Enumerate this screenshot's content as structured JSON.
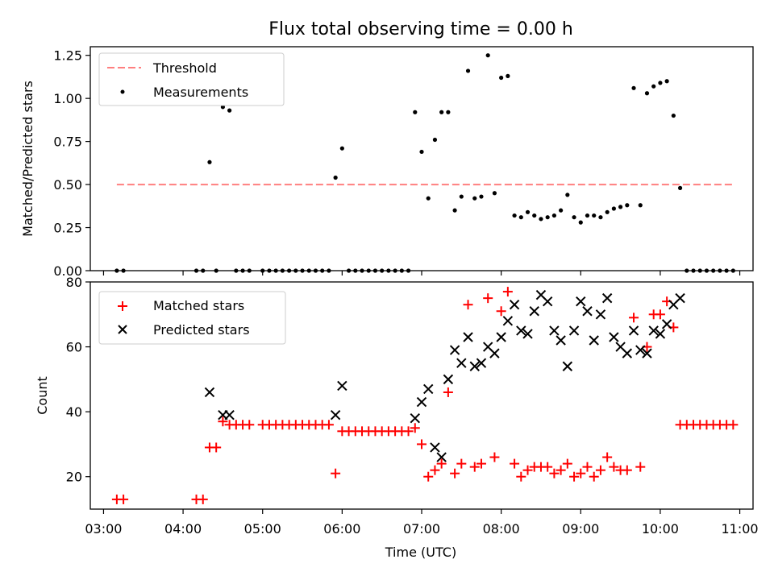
{
  "chart_data": [
    {
      "type": "scatter",
      "title": "Flux total observing time = 0.00 h",
      "xlabel": "",
      "ylabel": "Matched/Predicted stars",
      "xlim": [
        "02:50",
        "11:10"
      ],
      "ylim": [
        0,
        1.3
      ],
      "x_ticks": [
        "03:00",
        "04:00",
        "05:00",
        "06:00",
        "07:00",
        "08:00",
        "09:00",
        "10:00",
        "11:00"
      ],
      "y_ticks": [
        0.0,
        0.25,
        0.5,
        0.75,
        1.0,
        1.25
      ],
      "y_tick_labels": [
        "0.00",
        "0.25",
        "0.50",
        "0.75",
        "1.00",
        "1.25"
      ],
      "legend_position": "top-left",
      "grid": false,
      "threshold": {
        "name": "Threshold",
        "value": 0.5,
        "x_start": "03:10",
        "x_end": "10:55",
        "color": "#ff7f7f"
      },
      "series": [
        {
          "name": "Measurements",
          "color": "#000000",
          "points": [
            [
              "03:10",
              0.0
            ],
            [
              "03:15",
              0.0
            ],
            [
              "04:10",
              0.0
            ],
            [
              "04:15",
              0.0
            ],
            [
              "04:20",
              0.63
            ],
            [
              "04:25",
              0.0
            ],
            [
              "04:30",
              0.95
            ],
            [
              "04:35",
              0.93
            ],
            [
              "04:40",
              0.0
            ],
            [
              "04:45",
              0.0
            ],
            [
              "04:50",
              0.0
            ],
            [
              "05:00",
              0.0
            ],
            [
              "05:05",
              0.0
            ],
            [
              "05:10",
              0.0
            ],
            [
              "05:15",
              0.0
            ],
            [
              "05:20",
              0.0
            ],
            [
              "05:25",
              0.0
            ],
            [
              "05:30",
              0.0
            ],
            [
              "05:35",
              0.0
            ],
            [
              "05:40",
              0.0
            ],
            [
              "05:45",
              0.0
            ],
            [
              "05:50",
              0.0
            ],
            [
              "05:55",
              0.54
            ],
            [
              "06:00",
              0.71
            ],
            [
              "06:05",
              0.0
            ],
            [
              "06:10",
              0.0
            ],
            [
              "06:15",
              0.0
            ],
            [
              "06:20",
              0.0
            ],
            [
              "06:25",
              0.0
            ],
            [
              "06:30",
              0.0
            ],
            [
              "06:35",
              0.0
            ],
            [
              "06:40",
              0.0
            ],
            [
              "06:45",
              0.0
            ],
            [
              "06:50",
              0.0
            ],
            [
              "06:55",
              0.92
            ],
            [
              "07:00",
              0.69
            ],
            [
              "07:05",
              0.42
            ],
            [
              "07:10",
              0.76
            ],
            [
              "07:15",
              0.92
            ],
            [
              "07:20",
              0.92
            ],
            [
              "07:25",
              0.35
            ],
            [
              "07:30",
              0.43
            ],
            [
              "07:35",
              1.16
            ],
            [
              "07:40",
              0.42
            ],
            [
              "07:45",
              0.43
            ],
            [
              "07:50",
              1.25
            ],
            [
              "07:55",
              0.45
            ],
            [
              "08:00",
              1.12
            ],
            [
              "08:05",
              1.13
            ],
            [
              "08:10",
              0.32
            ],
            [
              "08:15",
              0.31
            ],
            [
              "08:20",
              0.34
            ],
            [
              "08:25",
              0.32
            ],
            [
              "08:30",
              0.3
            ],
            [
              "08:35",
              0.31
            ],
            [
              "08:40",
              0.32
            ],
            [
              "08:45",
              0.35
            ],
            [
              "08:50",
              0.44
            ],
            [
              "08:55",
              0.31
            ],
            [
              "09:00",
              0.28
            ],
            [
              "09:05",
              0.32
            ],
            [
              "09:10",
              0.32
            ],
            [
              "09:15",
              0.31
            ],
            [
              "09:20",
              0.34
            ],
            [
              "09:25",
              0.36
            ],
            [
              "09:30",
              0.37
            ],
            [
              "09:35",
              0.38
            ],
            [
              "09:40",
              1.06
            ],
            [
              "09:45",
              0.38
            ],
            [
              "09:50",
              1.03
            ],
            [
              "09:55",
              1.07
            ],
            [
              "10:00",
              1.09
            ],
            [
              "10:05",
              1.1
            ],
            [
              "10:10",
              0.9
            ],
            [
              "10:15",
              0.48
            ],
            [
              "10:20",
              0.0
            ],
            [
              "10:25",
              0.0
            ],
            [
              "10:30",
              0.0
            ],
            [
              "10:35",
              0.0
            ],
            [
              "10:40",
              0.0
            ],
            [
              "10:45",
              0.0
            ],
            [
              "10:50",
              0.0
            ],
            [
              "10:55",
              0.0
            ]
          ]
        }
      ]
    },
    {
      "type": "scatter",
      "title": "",
      "xlabel": "Time (UTC)",
      "ylabel": "Count",
      "xlim": [
        "02:50",
        "11:10"
      ],
      "ylim": [
        10,
        80
      ],
      "x_ticks": [
        "03:00",
        "04:00",
        "05:00",
        "06:00",
        "07:00",
        "08:00",
        "09:00",
        "10:00",
        "11:00"
      ],
      "y_ticks": [
        20,
        40,
        60,
        80
      ],
      "legend_position": "top-left",
      "grid": false,
      "series": [
        {
          "name": "Matched stars",
          "color": "#ff0000",
          "marker": "plus",
          "points": [
            [
              "03:10",
              13
            ],
            [
              "03:15",
              13
            ],
            [
              "04:10",
              13
            ],
            [
              "04:15",
              13
            ],
            [
              "04:20",
              29
            ],
            [
              "04:25",
              29
            ],
            [
              "04:30",
              37
            ],
            [
              "04:35",
              36
            ],
            [
              "04:40",
              36
            ],
            [
              "04:45",
              36
            ],
            [
              "04:50",
              36
            ],
            [
              "05:00",
              36
            ],
            [
              "05:05",
              36
            ],
            [
              "05:10",
              36
            ],
            [
              "05:15",
              36
            ],
            [
              "05:20",
              36
            ],
            [
              "05:25",
              36
            ],
            [
              "05:30",
              36
            ],
            [
              "05:35",
              36
            ],
            [
              "05:40",
              36
            ],
            [
              "05:45",
              36
            ],
            [
              "05:50",
              36
            ],
            [
              "05:55",
              21
            ],
            [
              "06:00",
              34
            ],
            [
              "06:05",
              34
            ],
            [
              "06:10",
              34
            ],
            [
              "06:15",
              34
            ],
            [
              "06:20",
              34
            ],
            [
              "06:25",
              34
            ],
            [
              "06:30",
              34
            ],
            [
              "06:35",
              34
            ],
            [
              "06:40",
              34
            ],
            [
              "06:45",
              34
            ],
            [
              "06:50",
              34
            ],
            [
              "06:55",
              35
            ],
            [
              "07:00",
              30
            ],
            [
              "07:05",
              20
            ],
            [
              "07:10",
              22
            ],
            [
              "07:15",
              24
            ],
            [
              "07:20",
              46
            ],
            [
              "07:25",
              21
            ],
            [
              "07:30",
              24
            ],
            [
              "07:35",
              73
            ],
            [
              "07:40",
              23
            ],
            [
              "07:45",
              24
            ],
            [
              "07:50",
              75
            ],
            [
              "07:55",
              26
            ],
            [
              "08:00",
              71
            ],
            [
              "08:05",
              77
            ],
            [
              "08:10",
              24
            ],
            [
              "08:15",
              20
            ],
            [
              "08:20",
              22
            ],
            [
              "08:25",
              23
            ],
            [
              "08:30",
              23
            ],
            [
              "08:35",
              23
            ],
            [
              "08:40",
              21
            ],
            [
              "08:45",
              22
            ],
            [
              "08:50",
              24
            ],
            [
              "08:55",
              20
            ],
            [
              "09:00",
              21
            ],
            [
              "09:05",
              23
            ],
            [
              "09:10",
              20
            ],
            [
              "09:15",
              22
            ],
            [
              "09:20",
              26
            ],
            [
              "09:25",
              23
            ],
            [
              "09:30",
              22
            ],
            [
              "09:35",
              22
            ],
            [
              "09:40",
              69
            ],
            [
              "09:45",
              23
            ],
            [
              "09:50",
              60
            ],
            [
              "09:55",
              70
            ],
            [
              "10:00",
              70
            ],
            [
              "10:05",
              74
            ],
            [
              "10:10",
              66
            ],
            [
              "10:15",
              36
            ],
            [
              "10:20",
              36
            ],
            [
              "10:25",
              36
            ],
            [
              "10:30",
              36
            ],
            [
              "10:35",
              36
            ],
            [
              "10:40",
              36
            ],
            [
              "10:45",
              36
            ],
            [
              "10:50",
              36
            ],
            [
              "10:55",
              36
            ]
          ]
        },
        {
          "name": "Predicted stars",
          "color": "#000000",
          "marker": "x",
          "points": [
            [
              "04:20",
              46
            ],
            [
              "04:30",
              39
            ],
            [
              "04:35",
              39
            ],
            [
              "05:55",
              39
            ],
            [
              "06:00",
              48
            ],
            [
              "06:55",
              38
            ],
            [
              "07:00",
              43
            ],
            [
              "07:05",
              47
            ],
            [
              "07:10",
              29
            ],
            [
              "07:15",
              26
            ],
            [
              "07:20",
              50
            ],
            [
              "07:25",
              59
            ],
            [
              "07:30",
              55
            ],
            [
              "07:35",
              63
            ],
            [
              "07:40",
              54
            ],
            [
              "07:45",
              55
            ],
            [
              "07:50",
              60
            ],
            [
              "07:55",
              58
            ],
            [
              "08:00",
              63
            ],
            [
              "08:05",
              68
            ],
            [
              "08:10",
              73
            ],
            [
              "08:15",
              65
            ],
            [
              "08:20",
              64
            ],
            [
              "08:25",
              71
            ],
            [
              "08:30",
              76
            ],
            [
              "08:35",
              74
            ],
            [
              "08:40",
              65
            ],
            [
              "08:45",
              62
            ],
            [
              "08:50",
              54
            ],
            [
              "08:55",
              65
            ],
            [
              "09:00",
              74
            ],
            [
              "09:05",
              71
            ],
            [
              "09:10",
              62
            ],
            [
              "09:15",
              70
            ],
            [
              "09:20",
              75
            ],
            [
              "09:25",
              63
            ],
            [
              "09:30",
              60
            ],
            [
              "09:35",
              58
            ],
            [
              "09:40",
              65
            ],
            [
              "09:45",
              59
            ],
            [
              "09:50",
              58
            ],
            [
              "09:55",
              65
            ],
            [
              "10:00",
              64
            ],
            [
              "10:05",
              67
            ],
            [
              "10:10",
              73
            ],
            [
              "10:15",
              75
            ]
          ]
        }
      ]
    }
  ]
}
